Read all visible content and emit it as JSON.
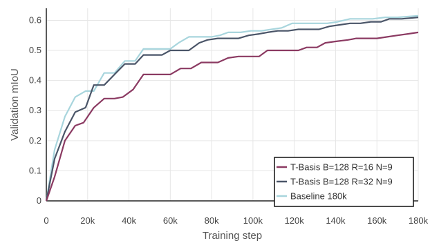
{
  "chart_data": {
    "type": "line",
    "title": "",
    "xlabel": "Training step",
    "ylabel": "Validation mIoU",
    "xlim": [
      0,
      180000
    ],
    "ylim": [
      0,
      0.64
    ],
    "x_ticks": [
      0,
      20000,
      40000,
      60000,
      80000,
      100000,
      120000,
      140000,
      160000,
      180000
    ],
    "x_tick_labels": [
      "0",
      "20k",
      "40k",
      "60k",
      "80k",
      "100k",
      "120k",
      "140k",
      "160k",
      "180k"
    ],
    "y_ticks": [
      0,
      0.1,
      0.2,
      0.3,
      0.4,
      0.5,
      0.6
    ],
    "y_tick_labels": [
      "0",
      "0.1",
      "0.2",
      "0.3",
      "0.4",
      "0.5",
      "0.6"
    ],
    "grid": true,
    "legend_position": "bottom-right",
    "series": [
      {
        "name": "T-Basis B=128 R=16 N=9",
        "color": "#8b3a62",
        "points": [
          [
            0,
            0.0
          ],
          [
            4000,
            0.08
          ],
          [
            9000,
            0.2
          ],
          [
            14000,
            0.25
          ],
          [
            18000,
            0.26
          ],
          [
            23000,
            0.31
          ],
          [
            28000,
            0.34
          ],
          [
            33000,
            0.34
          ],
          [
            37000,
            0.345
          ],
          [
            42000,
            0.37
          ],
          [
            47000,
            0.42
          ],
          [
            53000,
            0.42
          ],
          [
            60000,
            0.42
          ],
          [
            65000,
            0.44
          ],
          [
            70000,
            0.44
          ],
          [
            75000,
            0.46
          ],
          [
            83000,
            0.46
          ],
          [
            88000,
            0.475
          ],
          [
            93000,
            0.48
          ],
          [
            98000,
            0.48
          ],
          [
            103000,
            0.48
          ],
          [
            107000,
            0.5
          ],
          [
            113000,
            0.5
          ],
          [
            118000,
            0.5
          ],
          [
            122000,
            0.5
          ],
          [
            126000,
            0.51
          ],
          [
            131000,
            0.51
          ],
          [
            135000,
            0.525
          ],
          [
            140000,
            0.53
          ],
          [
            146000,
            0.535
          ],
          [
            150000,
            0.54
          ],
          [
            155000,
            0.54
          ],
          [
            160000,
            0.54
          ],
          [
            165000,
            0.545
          ],
          [
            170000,
            0.55
          ],
          [
            175000,
            0.555
          ],
          [
            180000,
            0.56
          ]
        ]
      },
      {
        "name": "T-Basis B=128 R=32 N=9",
        "color": "#4a5568",
        "points": [
          [
            0,
            0.0
          ],
          [
            4000,
            0.14
          ],
          [
            9000,
            0.23
          ],
          [
            14000,
            0.295
          ],
          [
            19000,
            0.31
          ],
          [
            23000,
            0.385
          ],
          [
            28000,
            0.385
          ],
          [
            33000,
            0.42
          ],
          [
            38000,
            0.455
          ],
          [
            43000,
            0.455
          ],
          [
            47000,
            0.485
          ],
          [
            52000,
            0.485
          ],
          [
            56000,
            0.485
          ],
          [
            60000,
            0.5
          ],
          [
            64000,
            0.5
          ],
          [
            69000,
            0.5
          ],
          [
            74000,
            0.525
          ],
          [
            78000,
            0.535
          ],
          [
            83000,
            0.54
          ],
          [
            88000,
            0.54
          ],
          [
            93000,
            0.54
          ],
          [
            98000,
            0.55
          ],
          [
            103000,
            0.555
          ],
          [
            107000,
            0.56
          ],
          [
            112000,
            0.565
          ],
          [
            117000,
            0.565
          ],
          [
            122000,
            0.57
          ],
          [
            127000,
            0.57
          ],
          [
            132000,
            0.57
          ],
          [
            137000,
            0.58
          ],
          [
            142000,
            0.585
          ],
          [
            147000,
            0.59
          ],
          [
            152000,
            0.59
          ],
          [
            157000,
            0.595
          ],
          [
            162000,
            0.595
          ],
          [
            166000,
            0.605
          ],
          [
            172000,
            0.605
          ],
          [
            180000,
            0.61
          ]
        ]
      },
      {
        "name": "Baseline 180k",
        "color": "#a8d5dd",
        "points": [
          [
            0,
            0.0
          ],
          [
            4000,
            0.17
          ],
          [
            9000,
            0.28
          ],
          [
            14000,
            0.345
          ],
          [
            19000,
            0.365
          ],
          [
            23000,
            0.365
          ],
          [
            28000,
            0.425
          ],
          [
            33000,
            0.425
          ],
          [
            38000,
            0.465
          ],
          [
            43000,
            0.465
          ],
          [
            47000,
            0.505
          ],
          [
            52000,
            0.505
          ],
          [
            56000,
            0.505
          ],
          [
            60000,
            0.505
          ],
          [
            64000,
            0.525
          ],
          [
            69000,
            0.545
          ],
          [
            74000,
            0.545
          ],
          [
            80000,
            0.545
          ],
          [
            84000,
            0.55
          ],
          [
            88000,
            0.56
          ],
          [
            94000,
            0.56
          ],
          [
            99000,
            0.565
          ],
          [
            104000,
            0.565
          ],
          [
            109000,
            0.57
          ],
          [
            114000,
            0.575
          ],
          [
            119000,
            0.59
          ],
          [
            124000,
            0.59
          ],
          [
            130000,
            0.59
          ],
          [
            136000,
            0.59
          ],
          [
            141000,
            0.595
          ],
          [
            147000,
            0.605
          ],
          [
            152000,
            0.605
          ],
          [
            158000,
            0.605
          ],
          [
            164000,
            0.61
          ],
          [
            170000,
            0.61
          ],
          [
            180000,
            0.615
          ]
        ]
      }
    ]
  }
}
